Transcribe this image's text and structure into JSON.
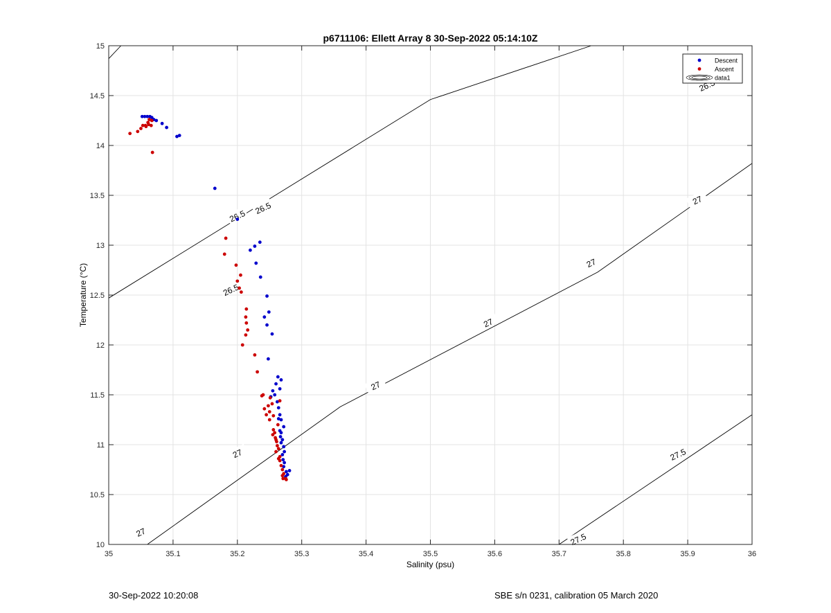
{
  "chart_data": {
    "type": "scatter",
    "title": "p6711106: Ellett Array 8 30-Sep-2022 05:14:10Z",
    "xlabel": "Salinity (psu)",
    "ylabel": "Temperature (°C)",
    "xlim": [
      35,
      36
    ],
    "ylim": [
      10,
      15
    ],
    "xticks": [
      35,
      35.1,
      35.2,
      35.3,
      35.4,
      35.5,
      35.6,
      35.7,
      35.8,
      35.9,
      36
    ],
    "yticks": [
      10,
      10.5,
      11,
      11.5,
      12,
      12.5,
      13,
      13.5,
      14,
      14.5,
      15
    ],
    "xtick_labels": [
      "35",
      "35.1",
      "35.2",
      "35.3",
      "35.4",
      "35.5",
      "35.6",
      "35.7",
      "35.8",
      "35.9",
      "36"
    ],
    "ytick_labels": [
      "10",
      "10.5",
      "11",
      "11.5",
      "12",
      "12.5",
      "13",
      "13.5",
      "14",
      "14.5",
      "15"
    ],
    "grid": true,
    "legend_position": "top-right",
    "legend": [
      "Descent",
      "Ascent",
      "data1"
    ],
    "series": [
      {
        "name": "Descent",
        "color": "#0000cc",
        "points": [
          [
            35.052,
            14.29
          ],
          [
            35.056,
            14.29
          ],
          [
            35.06,
            14.29
          ],
          [
            35.064,
            14.29
          ],
          [
            35.067,
            14.28
          ],
          [
            35.07,
            14.26
          ],
          [
            35.074,
            14.25
          ],
          [
            35.083,
            14.22
          ],
          [
            35.09,
            14.18
          ],
          [
            35.106,
            14.09
          ],
          [
            35.11,
            14.1
          ],
          [
            35.165,
            13.57
          ],
          [
            35.2,
            13.26
          ],
          [
            35.235,
            13.03
          ],
          [
            35.227,
            12.99
          ],
          [
            35.22,
            12.95
          ],
          [
            35.229,
            12.82
          ],
          [
            35.236,
            12.68
          ],
          [
            35.246,
            12.49
          ],
          [
            35.249,
            12.33
          ],
          [
            35.242,
            12.28
          ],
          [
            35.246,
            12.2
          ],
          [
            35.254,
            12.11
          ],
          [
            35.248,
            11.86
          ],
          [
            35.263,
            11.68
          ],
          [
            35.268,
            11.65
          ],
          [
            35.26,
            11.61
          ],
          [
            35.266,
            11.56
          ],
          [
            35.255,
            11.54
          ],
          [
            35.258,
            11.5
          ],
          [
            35.252,
            11.48
          ],
          [
            35.262,
            11.43
          ],
          [
            35.264,
            11.37
          ],
          [
            35.266,
            11.3
          ],
          [
            35.264,
            11.26
          ],
          [
            35.268,
            11.25
          ],
          [
            35.272,
            11.18
          ],
          [
            35.266,
            11.14
          ],
          [
            35.268,
            11.12
          ],
          [
            35.267,
            11.08
          ],
          [
            35.27,
            11.05
          ],
          [
            35.268,
            11.02
          ],
          [
            35.272,
            10.98
          ],
          [
            35.273,
            10.93
          ],
          [
            35.27,
            10.9
          ],
          [
            35.271,
            10.85
          ],
          [
            35.273,
            10.82
          ],
          [
            35.272,
            10.78
          ],
          [
            35.276,
            10.73
          ],
          [
            35.281,
            10.74
          ],
          [
            35.278,
            10.7
          ],
          [
            35.275,
            10.68
          ]
        ]
      },
      {
        "name": "Ascent",
        "color": "#cc0000",
        "points": [
          [
            35.033,
            14.12
          ],
          [
            35.045,
            14.14
          ],
          [
            35.05,
            14.17
          ],
          [
            35.053,
            14.2
          ],
          [
            35.057,
            14.2
          ],
          [
            35.061,
            14.23
          ],
          [
            35.063,
            14.26
          ],
          [
            35.066,
            14.2
          ],
          [
            35.067,
            14.25
          ],
          [
            35.068,
            13.93
          ],
          [
            35.058,
            14.19
          ],
          [
            35.062,
            14.21
          ],
          [
            35.182,
            13.07
          ],
          [
            35.18,
            12.91
          ],
          [
            35.198,
            12.8
          ],
          [
            35.205,
            12.7
          ],
          [
            35.2,
            12.64
          ],
          [
            35.203,
            12.57
          ],
          [
            35.206,
            12.53
          ],
          [
            35.214,
            12.36
          ],
          [
            35.213,
            12.28
          ],
          [
            35.214,
            12.22
          ],
          [
            35.216,
            12.15
          ],
          [
            35.213,
            12.1
          ],
          [
            35.208,
            12.0
          ],
          [
            35.227,
            11.9
          ],
          [
            35.231,
            11.73
          ],
          [
            35.24,
            11.5
          ],
          [
            35.238,
            11.49
          ],
          [
            35.251,
            11.47
          ],
          [
            35.266,
            11.44
          ],
          [
            35.254,
            11.41
          ],
          [
            35.242,
            11.36
          ],
          [
            35.25,
            11.33
          ],
          [
            35.248,
            11.39
          ],
          [
            35.245,
            11.3
          ],
          [
            35.25,
            11.25
          ],
          [
            35.256,
            11.29
          ],
          [
            35.263,
            11.2
          ],
          [
            35.256,
            11.15
          ],
          [
            35.258,
            11.12
          ],
          [
            35.255,
            11.1
          ],
          [
            35.259,
            11.07
          ],
          [
            35.26,
            11.05
          ],
          [
            35.261,
            11.03
          ],
          [
            35.262,
            10.99
          ],
          [
            35.264,
            10.96
          ],
          [
            35.26,
            10.93
          ],
          [
            35.266,
            10.88
          ],
          [
            35.264,
            10.86
          ],
          [
            35.266,
            10.84
          ],
          [
            35.268,
            10.79
          ],
          [
            35.27,
            10.75
          ],
          [
            35.272,
            10.71
          ],
          [
            35.27,
            10.69
          ],
          [
            35.271,
            10.66
          ],
          [
            35.275,
            10.66
          ],
          [
            35.276,
            10.65
          ]
        ]
      }
    ],
    "contours": [
      {
        "label": "26.5",
        "line": [
          [
            35.0,
            14.87
          ],
          [
            35.019,
            15.0
          ]
        ],
        "line2": [
          [
            35.0,
            12.47
          ],
          [
            35.5,
            14.46
          ],
          [
            35.75,
            15.0
          ]
        ],
        "label_positions": [
          [
            35.24,
            13.37
          ],
          [
            35.19,
            12.55
          ],
          [
            35.93,
            14.6
          ],
          [
            35.2,
            13.29
          ]
        ]
      },
      {
        "label": "27",
        "line": [
          [
            35.06,
            10.0
          ],
          [
            35.36,
            11.38
          ],
          [
            35.76,
            12.73
          ],
          [
            36.0,
            13.82
          ]
        ],
        "label_positions": [
          [
            35.05,
            10.12
          ],
          [
            35.2,
            10.91
          ],
          [
            35.415,
            11.59
          ],
          [
            35.59,
            12.22
          ],
          [
            35.75,
            12.82
          ],
          [
            35.915,
            13.45
          ]
        ]
      },
      {
        "label": "27.5",
        "line": [
          [
            35.7,
            10.0
          ],
          [
            36.0,
            11.3
          ]
        ],
        "label_positions": [
          [
            35.73,
            10.05
          ],
          [
            35.885,
            10.9
          ]
        ]
      }
    ],
    "footer": {
      "left": "30-Sep-2022 10:20:08",
      "right": "SBE s/n 0231, calibration 05 March 2020"
    }
  }
}
